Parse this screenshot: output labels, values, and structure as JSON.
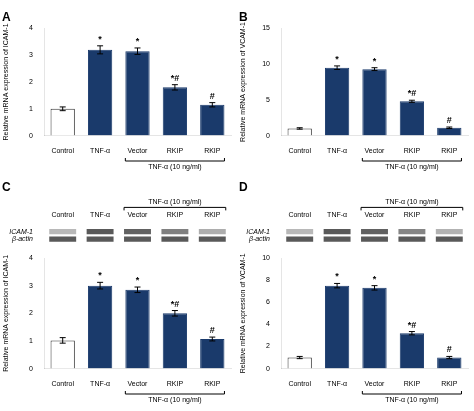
{
  "chart_data": [
    {
      "type": "bar",
      "title": "A",
      "ylabel": "Relative mRNA expression of ICAM-1",
      "categories": [
        "Control",
        "TNF-α",
        "Vector",
        "RKIP",
        "RKIP"
      ],
      "values": [
        1.0,
        3.2,
        3.15,
        1.8,
        1.15
      ],
      "errors": [
        0.07,
        0.15,
        0.12,
        0.1,
        0.08
      ],
      "colors": [
        "white",
        "#1a3a6b",
        "#1a3a6b",
        "#1a3a6b",
        "#1a3a6b"
      ],
      "edge_colors": [
        "#333333",
        "#1a3a6b",
        "#1a3a6b",
        "#1a3a6b",
        "#1a3a6b"
      ],
      "annotations": [
        null,
        "*",
        "*",
        "*#",
        "#"
      ],
      "group_label": {
        "text": "TNF-α (10 ng/ml)",
        "from": 2,
        "to": 4
      },
      "ylim": [
        0,
        4
      ],
      "yticks": [
        0,
        1,
        2,
        3,
        4
      ],
      "grid": false
    },
    {
      "type": "bar",
      "title": "B",
      "ylabel": "Relative mRNA expression of VCAM-1",
      "categories": [
        "Control",
        "TNF-α",
        "Vector",
        "RKIP",
        "RKIP"
      ],
      "values": [
        1.0,
        9.5,
        9.3,
        4.8,
        1.1
      ],
      "errors": [
        0.1,
        0.25,
        0.2,
        0.15,
        0.1
      ],
      "colors": [
        "white",
        "#1a3a6b",
        "#1a3a6b",
        "#1a3a6b",
        "#1a3a6b"
      ],
      "edge_colors": [
        "#333333",
        "#1a3a6b",
        "#1a3a6b",
        "#1a3a6b",
        "#1a3a6b"
      ],
      "annotations": [
        null,
        "*",
        "*",
        "*#",
        "#"
      ],
      "group_label": {
        "text": "TNF-α (10 ng/ml)",
        "from": 2,
        "to": 4
      },
      "ylim": [
        0,
        15
      ],
      "yticks": [
        0,
        5,
        10,
        15
      ],
      "grid": false
    },
    {
      "type": "blot",
      "title": "C",
      "rows": [
        "ICAM-1",
        "β-actin"
      ],
      "categories": [
        "Control",
        "TNF-α",
        "Vector",
        "RKIP",
        "RKIP"
      ],
      "colors": [
        [
          "#b8b8b8",
          "#595959",
          "#616161",
          "#808080",
          "#adadad"
        ],
        [
          "#595959",
          "#595959",
          "#595959",
          "#595959",
          "#595959"
        ]
      ],
      "group_label": {
        "text": "TNF-α (10 ng/ml)",
        "from": 2,
        "to": 4
      }
    },
    {
      "type": "bar",
      "ylabel": "Relative mRNA expression of ICAM-1",
      "categories": [
        "Control",
        "TNF-α",
        "Vector",
        "RKIP",
        "RKIP"
      ],
      "values": [
        1.02,
        3.0,
        2.85,
        2.0,
        1.07
      ],
      "errors": [
        0.1,
        0.12,
        0.1,
        0.1,
        0.07
      ],
      "colors": [
        "white",
        "#1a3a6b",
        "#1a3a6b",
        "#1a3a6b",
        "#1a3a6b"
      ],
      "edge_colors": [
        "#333333",
        "#1a3a6b",
        "#1a3a6b",
        "#1a3a6b",
        "#1a3a6b"
      ],
      "annotations": [
        null,
        "*",
        "*",
        "*#",
        "#"
      ],
      "group_label": {
        "text": "TNF-α (10 ng/ml)",
        "from": 2,
        "to": 4
      },
      "ylim": [
        0,
        4
      ],
      "yticks": [
        0,
        1,
        2,
        3,
        4
      ],
      "grid": false
    },
    {
      "type": "blot",
      "title": "D",
      "rows": [
        "ICAM-1",
        "β-actin"
      ],
      "categories": [
        "Control",
        "TNF-α",
        "Vector",
        "RKIP",
        "RKIP"
      ],
      "colors": [
        [
          "#b8b8b8",
          "#595959",
          "#616161",
          "#858585",
          "#b2b2b2"
        ],
        [
          "#595959",
          "#595959",
          "#595959",
          "#595959",
          "#595959"
        ]
      ],
      "group_label": {
        "text": "TNF-α (10 ng/ml)",
        "from": 2,
        "to": 4
      }
    },
    {
      "type": "bar",
      "ylabel": "Relative mRNA expression of VCAM-1",
      "categories": [
        "Control",
        "TNF-α",
        "Vector",
        "RKIP",
        "RKIP"
      ],
      "values": [
        1.0,
        7.5,
        7.3,
        3.2,
        1.0
      ],
      "errors": [
        0.1,
        0.2,
        0.2,
        0.15,
        0.1
      ],
      "colors": [
        "white",
        "#1a3a6b",
        "#1a3a6b",
        "#1a3a6b",
        "#1a3a6b"
      ],
      "edge_colors": [
        "#333333",
        "#1a3a6b",
        "#1a3a6b",
        "#1a3a6b",
        "#1a3a6b"
      ],
      "annotations": [
        null,
        "*",
        "*",
        "*#",
        "#"
      ],
      "group_label": {
        "text": "TNF-α (10 ng/ml)",
        "from": 2,
        "to": 4
      },
      "ylim": [
        0,
        10
      ],
      "yticks": [
        0,
        2,
        4,
        6,
        8,
        10
      ],
      "grid": false
    }
  ]
}
